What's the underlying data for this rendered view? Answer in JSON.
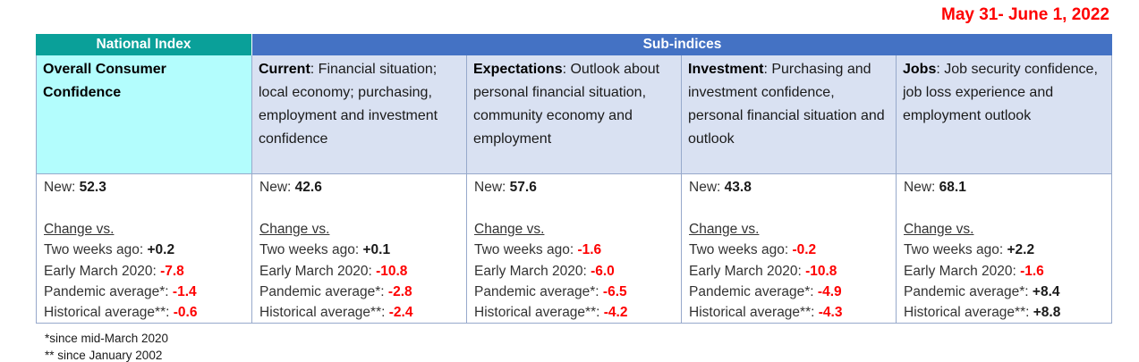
{
  "date_label": "May 31- June 1, 2022",
  "header": {
    "national_index": "National Index",
    "sub_indices": "Sub-indices"
  },
  "row_labels": {
    "new": "New:",
    "change_heading": "Change vs.",
    "changes": [
      "Two weeks ago:",
      "Early March 2020:",
      "Pandemic average*:",
      "Historical average**:"
    ]
  },
  "colors": {
    "teal_header": "#0aa099",
    "blue_header": "#4472c4",
    "overall_cell_cyan": "#b3fdfd",
    "subindex_cell_blue": "#d9e1f2",
    "negative_red": "#fe0000",
    "positive_black": "#1a1a1a",
    "date_red": "#fe0000"
  },
  "columns": [
    {
      "term": "Overall Consumer Confidence",
      "desc": "",
      "new": "52.3",
      "changes": [
        {
          "v": "+0.2",
          "c": "#1a1a1a"
        },
        {
          "v": "-7.8",
          "c": "#fe0000"
        },
        {
          "v": "-1.4",
          "c": "#fe0000"
        },
        {
          "v": "-0.6",
          "c": "#fe0000"
        }
      ]
    },
    {
      "term": "Current",
      "desc": ": Financial situation; local economy; purchasing, employment and investment confidence",
      "new": "42.6",
      "changes": [
        {
          "v": "+0.1",
          "c": "#1a1a1a"
        },
        {
          "v": "-10.8",
          "c": "#fe0000"
        },
        {
          "v": "-2.8",
          "c": "#fe0000"
        },
        {
          "v": "-2.4",
          "c": "#fe0000"
        }
      ]
    },
    {
      "term": "Expectations",
      "desc": ": Outlook about personal financial situation, community economy and employment",
      "new": "57.6",
      "changes": [
        {
          "v": "-1.6",
          "c": "#fe0000"
        },
        {
          "v": "-6.0",
          "c": "#fe0000"
        },
        {
          "v": "-6.5",
          "c": "#fe0000"
        },
        {
          "v": "-4.2",
          "c": "#fe0000"
        }
      ]
    },
    {
      "term": "Investment",
      "desc": ": Purchasing and investment confidence, personal financial situation and outlook",
      "new": "43.8",
      "changes": [
        {
          "v": "-0.2",
          "c": "#fe0000"
        },
        {
          "v": "-10.8",
          "c": "#fe0000"
        },
        {
          "v": "-4.9",
          "c": "#fe0000"
        },
        {
          "v": "-4.3",
          "c": "#fe0000"
        }
      ]
    },
    {
      "term": "Jobs",
      "desc": ": Job security confidence, job loss experience and employment outlook",
      "new": "68.1",
      "changes": [
        {
          "v": "+2.2",
          "c": "#1a1a1a"
        },
        {
          "v": "-1.6",
          "c": "#fe0000"
        },
        {
          "v": "+8.4",
          "c": "#1a1a1a"
        },
        {
          "v": "+8.8",
          "c": "#1a1a1a"
        }
      ]
    }
  ],
  "footnotes": [
    "*since mid-March 2020",
    "** since January 2002"
  ],
  "chart_data": {
    "type": "table",
    "title": "May 31- June 1, 2022",
    "columns": [
      "Overall Consumer Confidence",
      "Current",
      "Expectations",
      "Investment",
      "Jobs"
    ],
    "rows": [
      {
        "label": "New",
        "values": [
          52.3,
          42.6,
          57.6,
          43.8,
          68.1
        ]
      },
      {
        "label": "Change vs. Two weeks ago",
        "values": [
          0.2,
          0.1,
          -1.6,
          -0.2,
          2.2
        ]
      },
      {
        "label": "Change vs. Early March 2020",
        "values": [
          -7.8,
          -10.8,
          -6.0,
          -10.8,
          -1.6
        ]
      },
      {
        "label": "Change vs. Pandemic average*",
        "values": [
          -1.4,
          -2.8,
          -6.5,
          -4.9,
          8.4
        ]
      },
      {
        "label": "Change vs. Historical average**",
        "values": [
          -0.6,
          -2.4,
          -4.2,
          -4.3,
          8.8
        ]
      }
    ]
  }
}
